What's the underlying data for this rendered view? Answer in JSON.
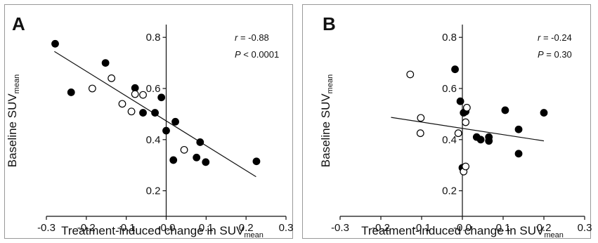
{
  "chart_data": [
    {
      "type": "scatter",
      "panel_label": "A",
      "xlabel": "Treatment-induced change in SUV",
      "xlabel_sub": "mean",
      "ylabel": "Baseline SUV",
      "ylabel_sub": "mean",
      "xlim": [
        -0.3,
        0.3
      ],
      "ylim": [
        0.1,
        0.85
      ],
      "xticks": [
        "-0.3",
        "-0.2",
        "-0.1",
        "-0.0",
        "0.1",
        "0.2",
        "0.3"
      ],
      "xtick_values": [
        -0.3,
        -0.2,
        -0.1,
        0.0,
        0.1,
        0.2,
        0.3
      ],
      "yticks": [
        "0.2",
        "0.4",
        "0.6",
        "0.8"
      ],
      "ytick_values": [
        0.2,
        0.4,
        0.6,
        0.8
      ],
      "stats": {
        "r_symbol": "r",
        "r_value": "= -0.88",
        "p_symbol": "P",
        "p_value": "< 0.0001"
      },
      "series": [
        {
          "marker": "filled",
          "points": [
            [
              -0.278,
              0.775
            ],
            [
              -0.238,
              0.585
            ],
            [
              -0.152,
              0.7
            ],
            [
              -0.078,
              0.602
            ],
            [
              -0.058,
              0.505
            ],
            [
              -0.028,
              0.505
            ],
            [
              -0.012,
              0.565
            ],
            [
              0.0,
              0.435
            ],
            [
              0.018,
              0.32
            ],
            [
              0.023,
              0.47
            ],
            [
              0.076,
              0.33
            ],
            [
              0.085,
              0.39
            ],
            [
              0.099,
              0.312
            ],
            [
              0.226,
              0.315
            ]
          ]
        },
        {
          "marker": "open",
          "points": [
            [
              -0.185,
              0.6
            ],
            [
              -0.137,
              0.64
            ],
            [
              -0.11,
              0.54
            ],
            [
              -0.087,
              0.51
            ],
            [
              -0.078,
              0.578
            ],
            [
              -0.058,
              0.575
            ],
            [
              0.045,
              0.36
            ]
          ]
        }
      ],
      "regression": {
        "x": [
          -0.28,
          0.225
        ],
        "y": [
          0.745,
          0.255
        ]
      }
    },
    {
      "type": "scatter",
      "panel_label": "B",
      "xlabel": "Treatment-induced change in SUV",
      "xlabel_sub": "mean",
      "ylabel": "Baseline SUV",
      "ylabel_sub": "mean",
      "xlim": [
        -0.3,
        0.3
      ],
      "ylim": [
        0.1,
        0.85
      ],
      "xticks": [
        "-0.3",
        "-0.2",
        "-0.1",
        "-0.0",
        "0.1",
        "0.2",
        "0.3"
      ],
      "xtick_values": [
        -0.3,
        -0.2,
        -0.1,
        0.0,
        0.1,
        0.2,
        0.3
      ],
      "yticks": [
        "0.2",
        "0.4",
        "0.6",
        "0.8"
      ],
      "ytick_values": [
        0.2,
        0.4,
        0.6,
        0.8
      ],
      "stats": {
        "r_symbol": "r",
        "r_value": "= -0.24",
        "p_symbol": "P",
        "p_value": "= 0.30"
      },
      "series": [
        {
          "marker": "filled",
          "points": [
            [
              -0.018,
              0.675
            ],
            [
              -0.005,
              0.55
            ],
            [
              0.003,
              0.505
            ],
            [
              0.008,
              0.51
            ],
            [
              0.0,
              0.29
            ],
            [
              0.035,
              0.41
            ],
            [
              0.045,
              0.4
            ],
            [
              0.065,
              0.41
            ],
            [
              0.065,
              0.395
            ],
            [
              0.105,
              0.515
            ],
            [
              0.138,
              0.44
            ],
            [
              0.138,
              0.345
            ],
            [
              0.2,
              0.505
            ]
          ]
        },
        {
          "marker": "open",
          "points": [
            [
              -0.128,
              0.655
            ],
            [
              -0.102,
              0.485
            ],
            [
              -0.103,
              0.425
            ],
            [
              -0.01,
              0.425
            ],
            [
              0.008,
              0.468
            ],
            [
              0.011,
              0.525
            ],
            [
              0.003,
              0.275
            ],
            [
              0.008,
              0.295
            ]
          ]
        }
      ],
      "regression": {
        "x": [
          -0.175,
          0.2
        ],
        "y": [
          0.487,
          0.395
        ]
      }
    }
  ]
}
